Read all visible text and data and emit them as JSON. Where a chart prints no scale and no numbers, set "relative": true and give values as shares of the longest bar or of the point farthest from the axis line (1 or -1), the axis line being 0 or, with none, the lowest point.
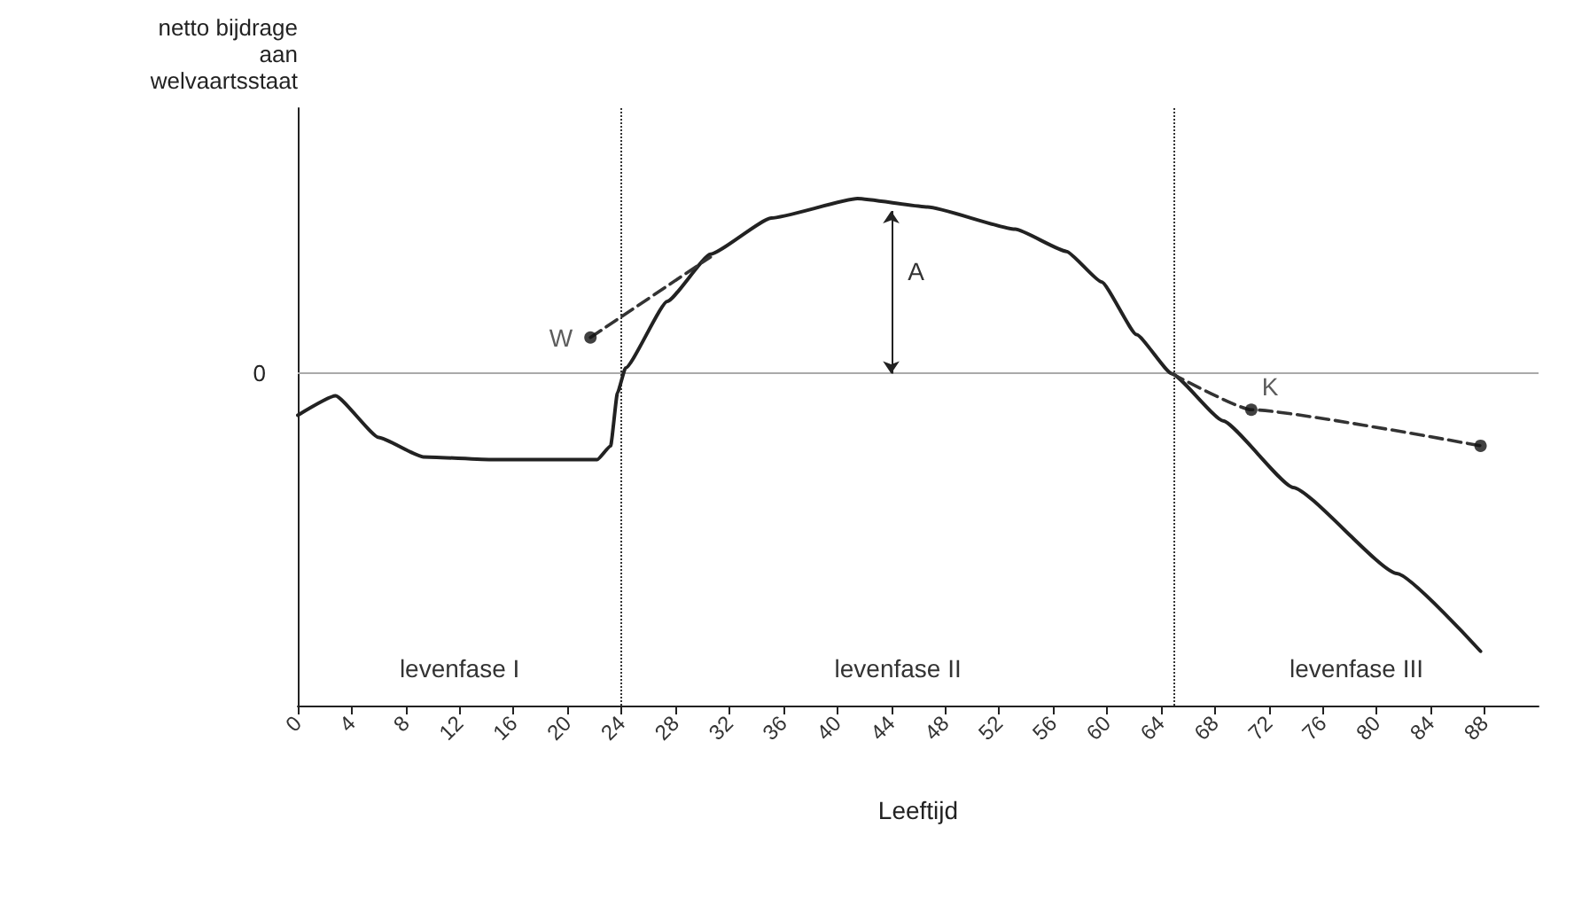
{
  "chart_data": {
    "type": "line",
    "relative": true,
    "ylabel": "netto bijdrage\naan\nwelvaartsstaat",
    "xlabel": "Leeftijd",
    "xlim": [
      0,
      92
    ],
    "xticks": [
      0,
      4,
      8,
      12,
      16,
      20,
      24,
      28,
      32,
      36,
      40,
      44,
      48,
      52,
      56,
      60,
      64,
      68,
      72,
      76,
      80,
      84,
      88
    ],
    "grid": false,
    "series": [
      {
        "color": "#222222",
        "marker": "none",
        "line_style": "solid",
        "x": [
          0,
          2.8,
          6,
          9.3,
          14.5,
          22.2,
          23.2,
          23.7,
          24.3,
          27.4,
          30.6,
          35.1,
          41.5,
          46.7,
          53.2,
          57,
          59.6,
          62.2,
          64.8,
          68.6,
          73.8,
          81.5,
          87.7
        ],
        "values": [
          -0.15,
          -0.08,
          -0.23,
          -0.3,
          -0.31,
          -0.31,
          -0.26,
          -0.07,
          0.02,
          0.26,
          0.43,
          0.56,
          0.63,
          0.6,
          0.52,
          0.44,
          0.33,
          0.14,
          0,
          -0.17,
          -0.41,
          -0.72,
          -1
        ]
      },
      {
        "color": "#333333",
        "marker": "none",
        "line_style": "dashed",
        "x": [
          21.7,
          30.6
        ],
        "values": [
          0.13,
          0.42
        ]
      },
      {
        "color": "#333333",
        "marker": "none",
        "line_style": "dashed",
        "x": [
          64.8,
          70.7,
          87.7
        ],
        "values": [
          0,
          -0.13,
          -0.26
        ]
      },
      {
        "type": "scatter",
        "color": "#111111",
        "marker": "circle",
        "x": [
          21.7,
          70.7,
          87.7
        ],
        "values": [
          0.13,
          -0.13,
          -0.26
        ]
      }
    ],
    "ref_lines": [
      {
        "axis": "y",
        "value": 0,
        "label": "0",
        "color": "#aaaaaa",
        "line_style": "solid"
      },
      {
        "axis": "x",
        "value": 24,
        "color": "#333333",
        "line_style": "dotted"
      },
      {
        "axis": "x",
        "value": 65,
        "color": "#333333",
        "line_style": "dotted"
      }
    ],
    "annotations": [
      {
        "text": "W",
        "x": 21.7,
        "y": 0.13
      },
      {
        "text": "K",
        "x": 70.7,
        "y": -0.13
      },
      "A",
      "levenfase I",
      "levenfase II",
      "levenfase III"
    ]
  }
}
